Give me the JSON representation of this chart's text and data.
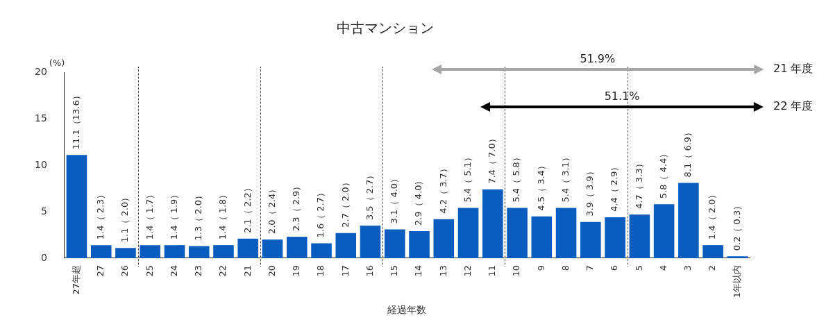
{
  "chart_data": {
    "type": "bar",
    "title": "中古マンション",
    "xlabel": "経過年数",
    "ylabel": "(%)",
    "categories": [
      "27年超",
      "27",
      "26",
      "25",
      "24",
      "23",
      "22",
      "21",
      "20",
      "19",
      "18",
      "17",
      "16",
      "15",
      "14",
      "13",
      "12",
      "11",
      "10",
      "9",
      "8",
      "7",
      "6",
      "5",
      "4",
      "3",
      "2",
      "1年以内"
    ],
    "values": [
      11.1,
      1.4,
      1.1,
      1.4,
      1.4,
      1.3,
      1.4,
      2.1,
      2.0,
      2.3,
      1.6,
      2.7,
      3.5,
      3.1,
      2.9,
      4.2,
      5.4,
      7.4,
      5.4,
      4.5,
      5.4,
      3.9,
      4.4,
      4.7,
      5.8,
      8.1,
      1.4,
      0.2
    ],
    "value_labels": [
      "11.1（13.6）",
      "1.4（ 2.3）",
      "1.1（ 2.0）",
      "1.4（ 1.7）",
      "1.4（ 1.9）",
      "1.3（ 2.0）",
      "1.4（ 1.8）",
      "2.1（ 2.2）",
      "2.0（ 2.4）",
      "2.3（ 2.9）",
      "1.6（ 2.7）",
      "2.7（ 2.0）",
      "3.5（ 2.7）",
      "3.1（ 4.0）",
      "2.9（ 4.0）",
      "4.2（ 3.7）",
      "5.4（ 5.1）",
      "7.4（ 7.0）",
      "5.4（ 5.8）",
      "4.5（ 3.4）",
      "5.4（ 3.1）",
      "3.9（ 3.9）",
      "4.4（ 2.9）",
      "4.7（ 3.3）",
      "5.8（ 4.4）",
      "8.1（ 6.9）",
      "1.4（ 2.0）",
      "0.2（ 0.3）"
    ],
    "color": "#0a5cbf",
    "ylim": [
      0,
      20
    ],
    "yticks": [
      0,
      5,
      10,
      15,
      20
    ],
    "grid": false,
    "legend": false,
    "annotations": [
      "51.9%",
      "21 年度",
      "51.1%",
      "22 年度"
    ]
  }
}
